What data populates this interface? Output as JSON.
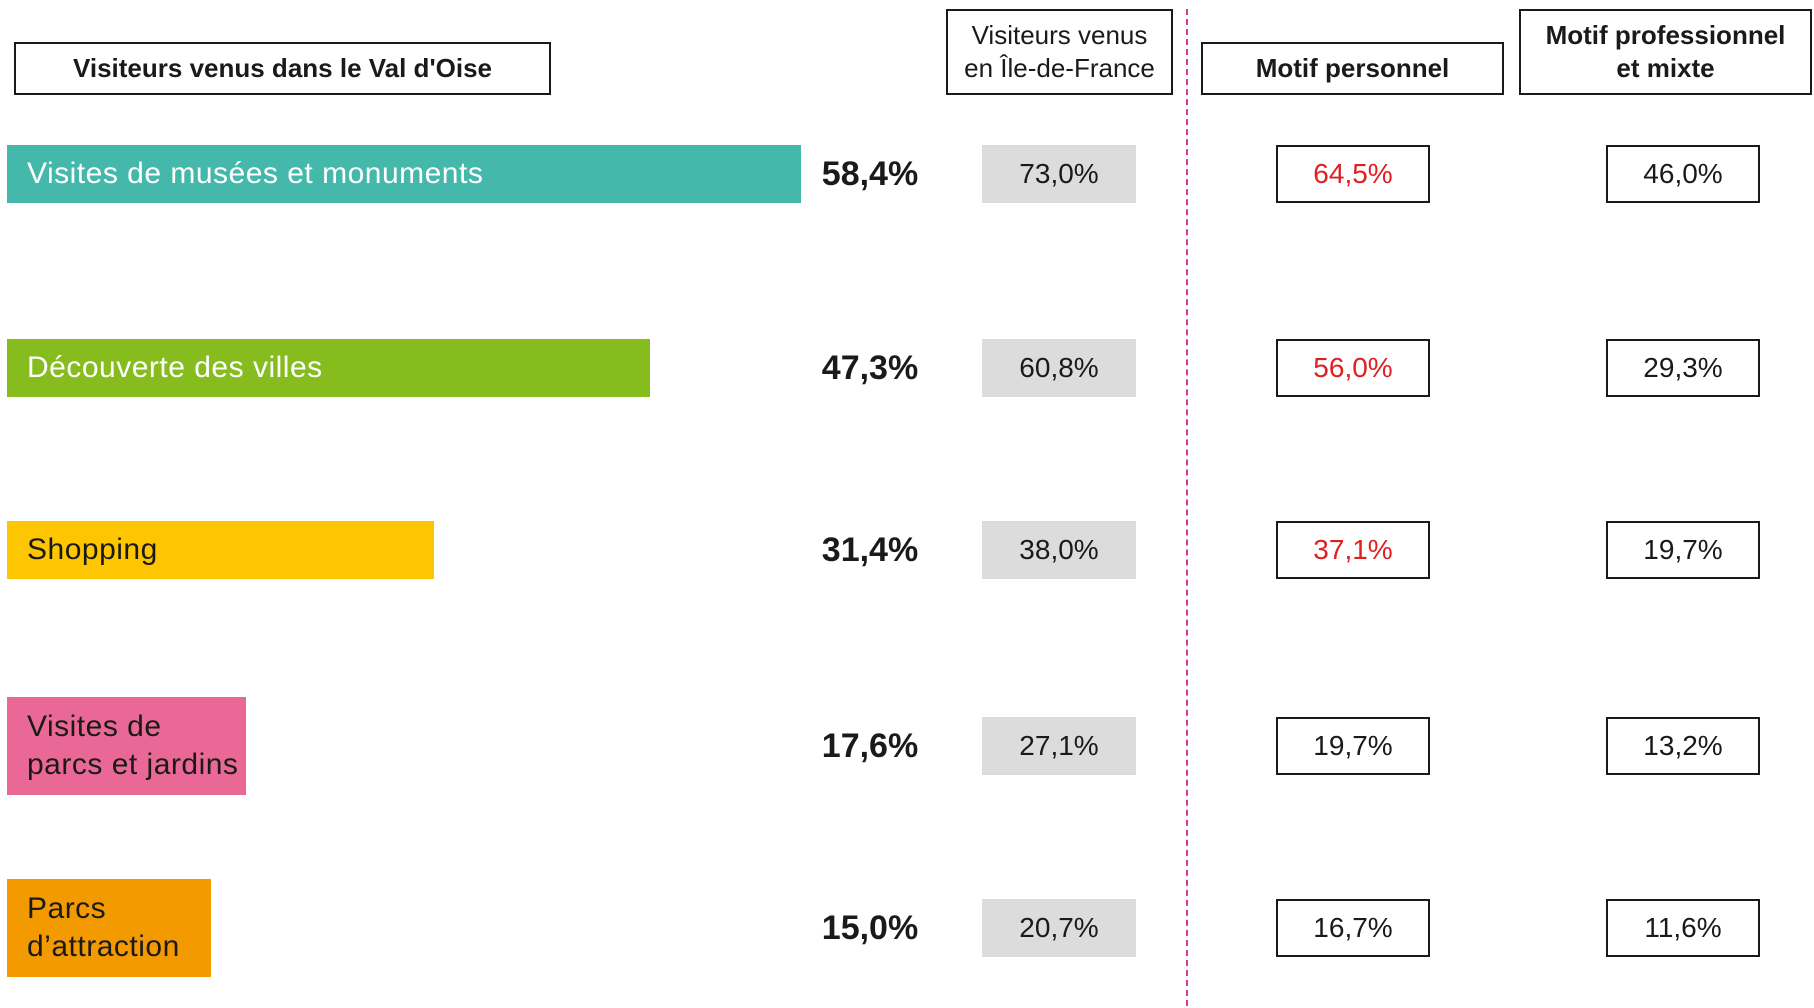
{
  "chart_data": {
    "type": "bar",
    "orientation": "horizontal",
    "title": "Visiteurs venus dans le Val d'Oise",
    "categories": [
      "Visites de musées et monuments",
      "Découverte des villes",
      "Shopping",
      "Visites de\nparcs et jardins",
      "Parcs\nd’attraction"
    ],
    "values": [
      58.4,
      47.3,
      31.4,
      17.6,
      15.0
    ],
    "value_labels": [
      "58,4%",
      "47,3%",
      "31,4%",
      "17,6%",
      "15,0%"
    ],
    "colors": [
      "#45b8ac",
      "#86bc1e",
      "#fec600",
      "#ea6895",
      "#f39a00"
    ],
    "label_colors": [
      "#ffffff",
      "#ffffff",
      "#1a1a1a",
      "#1a1a1a",
      "#1a1a1a"
    ],
    "columns": [
      {
        "title": "Visiteurs venus\nen Île-de-France",
        "bold": false,
        "fill": "#dcdcdc",
        "border": null,
        "values": [
          73.0,
          60.8,
          38.0,
          27.1,
          20.7
        ],
        "value_labels": [
          "73,0%",
          "60,8%",
          "38,0%",
          "27,1%",
          "20,7%"
        ],
        "value_colors": [
          "#1a1a1a",
          "#1a1a1a",
          "#1a1a1a",
          "#1a1a1a",
          "#1a1a1a"
        ]
      },
      {
        "title": "Motif personnel",
        "bold": true,
        "fill": "#ffffff",
        "border": "#1a1a1a",
        "values": [
          64.5,
          56.0,
          37.1,
          19.7,
          16.7
        ],
        "value_labels": [
          "64,5%",
          "56,0%",
          "37,1%",
          "19,7%",
          "16,7%"
        ],
        "value_colors": [
          "#e02020",
          "#e02020",
          "#e02020",
          "#1a1a1a",
          "#1a1a1a"
        ]
      },
      {
        "title": "Motif professionnel\net mixte",
        "bold": true,
        "fill": "#ffffff",
        "border": "#1a1a1a",
        "values": [
          46.0,
          29.3,
          19.7,
          13.2,
          11.6
        ],
        "value_labels": [
          "46,0%",
          "29,3%",
          "19,7%",
          "13,2%",
          "11,6%"
        ],
        "value_colors": [
          "#1a1a1a",
          "#1a1a1a",
          "#1a1a1a",
          "#1a1a1a",
          "#1a1a1a"
        ]
      }
    ]
  }
}
